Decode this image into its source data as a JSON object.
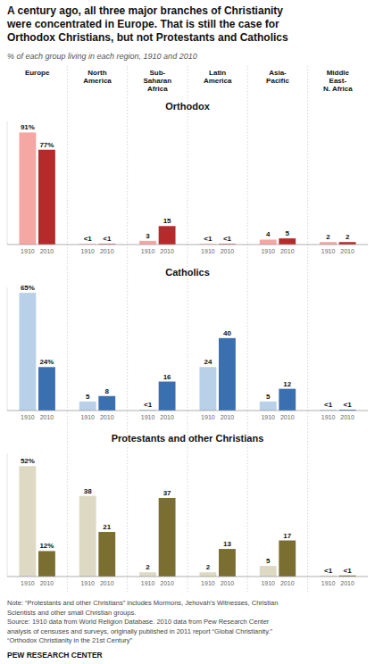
{
  "title": "A century ago, all three major branches of Christianity\nwere concentrated in Europe. That is still the case for\nOrthodox Christians, but not Protestants and Catholics",
  "subtitle": "% of each group living in each region, 1910 and 2010",
  "chart_data": [
    {
      "type": "bar",
      "title": "Orthodox",
      "categories": [
        "Europe",
        "North\nAmerica",
        "Sub-\nSaharan\nAfrica",
        "Latin\nAmerica",
        "Asia-\nPacific",
        "Middle\nEast-\nN. Africa"
      ],
      "series": [
        {
          "name": "1910",
          "color": "#f4a7a3",
          "values": [
            91,
            0.5,
            3,
            0.5,
            4,
            2
          ],
          "value_labels": [
            "91%",
            "<1",
            "3",
            "<1",
            "4",
            "2"
          ]
        },
        {
          "name": "2010",
          "color": "#b52b2b",
          "values": [
            77,
            0.5,
            15,
            0.5,
            5,
            2
          ],
          "value_labels": [
            "77%",
            "<1",
            "15",
            "<1",
            "5",
            "2"
          ]
        }
      ],
      "ylim": [
        0,
        100
      ],
      "data_labels": true,
      "tick_labels": "x"
    },
    {
      "type": "bar",
      "title": "Catholics",
      "series": [
        {
          "name": "1910",
          "color": "#b8d0e8",
          "values": [
            65,
            5,
            0.5,
            24,
            5,
            0.5
          ],
          "value_labels": [
            "65%",
            "5",
            "<1",
            "24",
            "5",
            "<1"
          ]
        },
        {
          "name": "2010",
          "color": "#3a6fb0",
          "values": [
            24,
            8,
            16,
            40,
            12,
            0.5
          ],
          "value_labels": [
            "24%",
            "8",
            "16",
            "40",
            "12",
            "<1"
          ]
        }
      ],
      "ylim": [
        0,
        68
      ],
      "data_labels": true,
      "tick_labels": false
    },
    {
      "type": "bar",
      "title": "Protestants and other Christians",
      "series": [
        {
          "name": "1910",
          "color": "#ddd9c3",
          "values": [
            52,
            38,
            2,
            2,
            5,
            0.5
          ],
          "value_labels": [
            "52%",
            "38",
            "2",
            "2",
            "5",
            "<1"
          ]
        },
        {
          "name": "2010",
          "color": "#7a6e30",
          "values": [
            12,
            21,
            37,
            13,
            17,
            0.5
          ],
          "value_labels": [
            "12%",
            "21",
            "37",
            "13",
            "17",
            "<1"
          ]
        }
      ],
      "ylim": [
        0,
        58
      ],
      "data_labels": true,
      "tick_labels": false
    }
  ],
  "annotations": [
    "Note: “Protestants and other Christians” includes Mormons, Jehovah’s Witnesses, Christian",
    "Scientists and other small Christian groups.",
    "Source: 1910 data from World Religion Database. 2010 data from Pew Research Center",
    "analysis of censuses and surveys, originally published in 2011 report “Global Christianity.”",
    "“Orthodox Christianity in the 21st Century”",
    "PEW RESEARCH CENTER"
  ]
}
